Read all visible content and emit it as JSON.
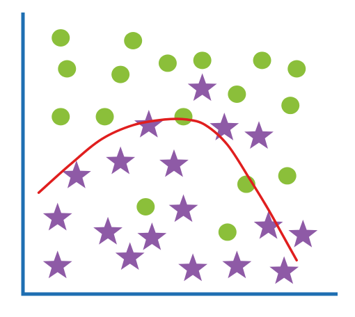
{
  "chart_data": {
    "type": "scatter",
    "grid": false,
    "legend": "none",
    "title": "",
    "xlabel": "",
    "ylabel": "",
    "xlim": [
      0,
      100
    ],
    "ylim": [
      0,
      100
    ],
    "series": [
      {
        "marker": "circle",
        "color": "#8bbf3a",
        "points": [
          [
            12,
            91
          ],
          [
            35,
            90
          ],
          [
            14,
            80
          ],
          [
            31,
            78
          ],
          [
            46,
            82
          ],
          [
            57,
            83
          ],
          [
            76,
            83
          ],
          [
            87,
            80
          ],
          [
            68,
            71
          ],
          [
            85,
            67
          ],
          [
            12,
            63
          ],
          [
            26,
            63
          ],
          [
            51,
            63
          ],
          [
            39,
            31
          ],
          [
            71,
            39
          ],
          [
            84,
            42
          ],
          [
            65,
            22
          ]
        ]
      },
      {
        "marker": "star",
        "color": "#8e5aa6",
        "points": [
          [
            57,
            73
          ],
          [
            40,
            60
          ],
          [
            64,
            59
          ],
          [
            75,
            56
          ],
          [
            17,
            42
          ],
          [
            31,
            47
          ],
          [
            48,
            46
          ],
          [
            11,
            27
          ],
          [
            27,
            22
          ],
          [
            41,
            20
          ],
          [
            51,
            30
          ],
          [
            78,
            24
          ],
          [
            89,
            21
          ],
          [
            11,
            10
          ],
          [
            34,
            13
          ],
          [
            54,
            9
          ],
          [
            68,
            10
          ],
          [
            83,
            8
          ]
        ]
      }
    ],
    "boundary": {
      "color": "#e01e1e",
      "points": [
        [
          5,
          36
        ],
        [
          15,
          46
        ],
        [
          25,
          55
        ],
        [
          35,
          60
        ],
        [
          45,
          62
        ],
        [
          52,
          62
        ],
        [
          58,
          60
        ],
        [
          65,
          53
        ],
        [
          72,
          41
        ],
        [
          78,
          30
        ],
        [
          83,
          20
        ],
        [
          87,
          12
        ]
      ]
    },
    "axis_color": "#1f6fb2"
  }
}
